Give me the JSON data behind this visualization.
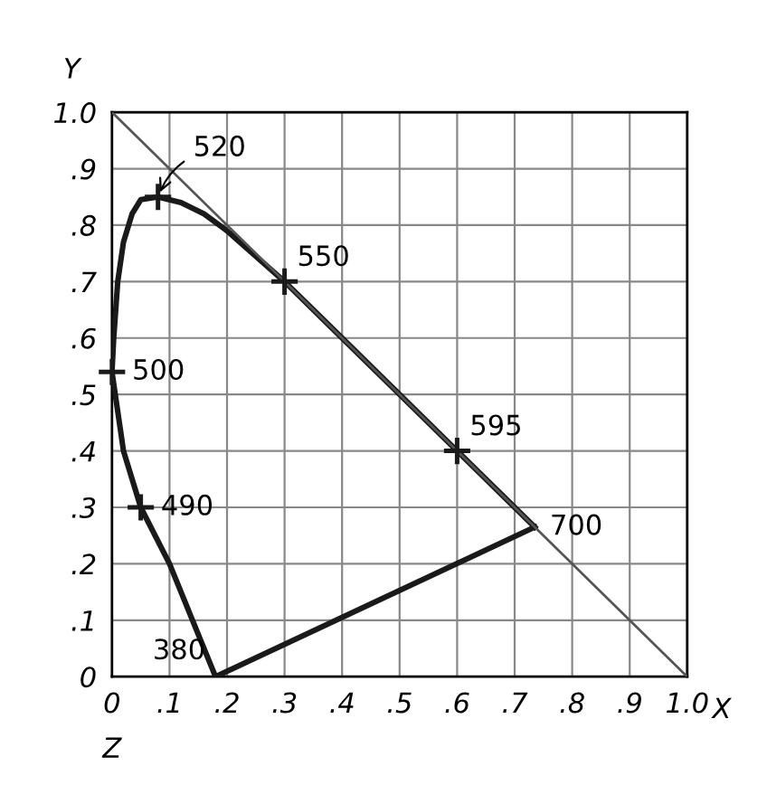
{
  "chart_data": {
    "type": "line",
    "xlabel": "X",
    "ylabel": "Y",
    "series": [
      {
        "type": "line",
        "color": "#1a1a1a",
        "line_style": "solid",
        "x": [
          0.18,
          0.14,
          0.1,
          0.05,
          0.02,
          0.0,
          0.003,
          0.01,
          0.02,
          0.035,
          0.05,
          0.08,
          0.12,
          0.16,
          0.2,
          0.3,
          0.4,
          0.5,
          0.6,
          0.7,
          0.735
        ],
        "values": [
          0.0,
          0.1,
          0.2,
          0.3,
          0.4,
          0.54,
          0.6,
          0.7,
          0.77,
          0.82,
          0.845,
          0.85,
          0.84,
          0.82,
          0.79,
          0.7,
          0.6,
          0.5,
          0.4,
          0.3,
          0.265
        ]
      },
      {
        "type": "line",
        "color": "#1a1a1a",
        "line_style": "solid",
        "x": [
          0.735,
          0.18
        ],
        "values": [
          0.265,
          0.0
        ]
      },
      {
        "type": "line",
        "color": "#555555",
        "line_style": "solid",
        "x": [
          0.0,
          1.0
        ],
        "values": [
          1.0,
          0.0
        ]
      },
      {
        "type": "scatter",
        "color": "#1a1a1a",
        "marker": "cross",
        "x": [
          0.08,
          0.3,
          0.6,
          0.0,
          0.05
        ],
        "values": [
          0.85,
          0.7,
          0.4,
          0.54,
          0.3
        ]
      }
    ],
    "annotations": [
      {
        "text": "520",
        "x": 0.08,
        "y": 0.85
      },
      {
        "text": "550",
        "x": 0.3,
        "y": 0.7
      },
      {
        "text": "595",
        "x": 0.6,
        "y": 0.4
      },
      {
        "text": "700",
        "x": 0.735,
        "y": 0.265
      },
      {
        "text": "500",
        "x": 0.0,
        "y": 0.54
      },
      {
        "text": "490",
        "x": 0.05,
        "y": 0.3
      },
      {
        "text": "380",
        "x": 0.18,
        "y": 0.0
      },
      "Z"
    ],
    "xlim": [
      0,
      1.0
    ],
    "ylim": [
      0,
      1.0
    ],
    "xticks": [
      0,
      {
        "value": 0.1,
        "label": ".1"
      },
      {
        "value": 0.2,
        "label": ".2"
      },
      {
        "value": 0.3,
        "label": ".3"
      },
      {
        "value": 0.4,
        "label": ".4"
      },
      {
        "value": 0.5,
        "label": ".5"
      },
      {
        "value": 0.6,
        "label": ".6"
      },
      {
        "value": 0.7,
        "label": ".7"
      },
      {
        "value": 0.8,
        "label": ".8"
      },
      {
        "value": 0.9,
        "label": ".9"
      },
      {
        "value": 1.0,
        "label": "1.0"
      }
    ],
    "yticks": [
      0,
      {
        "value": 0.1,
        "label": ".1"
      },
      {
        "value": 0.2,
        "label": ".2"
      },
      {
        "value": 0.3,
        "label": ".3"
      },
      {
        "value": 0.4,
        "label": ".4"
      },
      {
        "value": 0.5,
        "label": ".5"
      },
      {
        "value": 0.6,
        "label": ".6"
      },
      {
        "value": 0.7,
        "label": ".7"
      },
      {
        "value": 0.8,
        "label": ".8"
      },
      {
        "value": 0.9,
        "label": ".9"
      },
      {
        "value": 1.0,
        "label": "1.0"
      }
    ],
    "grid": true
  }
}
